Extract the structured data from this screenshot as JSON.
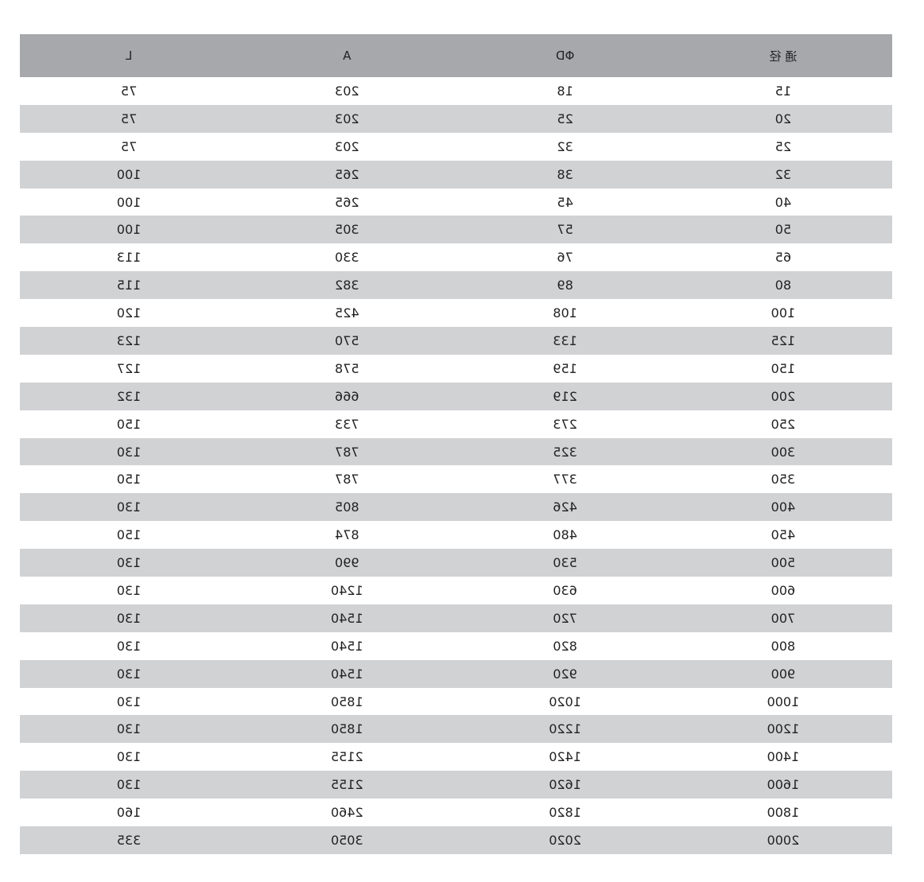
{
  "headers": [
    "通 径",
    "ΦD",
    "A",
    "L"
  ],
  "rows": [
    [
      "15",
      "18",
      "203",
      "75"
    ],
    [
      "20",
      "25",
      "203",
      "75"
    ],
    [
      "25",
      "32",
      "203",
      "75"
    ],
    [
      "32",
      "38",
      "265",
      "100"
    ],
    [
      "40",
      "45",
      "265",
      "100"
    ],
    [
      "50",
      "57",
      "305",
      "100"
    ],
    [
      "65",
      "76",
      "330",
      "113"
    ],
    [
      "80",
      "89",
      "382",
      "115"
    ],
    [
      "100",
      "108",
      "425",
      "120"
    ],
    [
      "125",
      "133",
      "570",
      "123"
    ],
    [
      "150",
      "159",
      "578",
      "127"
    ],
    [
      "200",
      "219",
      "666",
      "132"
    ],
    [
      "250",
      "273",
      "733",
      "150"
    ],
    [
      "300",
      "325",
      "787",
      "130"
    ],
    [
      "350",
      "377",
      "787",
      "150"
    ],
    [
      "400",
      "426",
      "805",
      "130"
    ],
    [
      "450",
      "480",
      "874",
      "150"
    ],
    [
      "500",
      "530",
      "990",
      "130"
    ],
    [
      "600",
      "630",
      "1240",
      "130"
    ],
    [
      "700",
      "720",
      "1540",
      "130"
    ],
    [
      "800",
      "820",
      "1540",
      "130"
    ],
    [
      "900",
      "920",
      "1540",
      "130"
    ],
    [
      "1000",
      "1020",
      "1850",
      "130"
    ],
    [
      "1200",
      "1220",
      "1850",
      "130"
    ],
    [
      "1400",
      "1420",
      "2155",
      "130"
    ],
    [
      "1600",
      "1620",
      "2155",
      "130"
    ],
    [
      "1800",
      "1820",
      "2460",
      "160"
    ],
    [
      "2000",
      "2020",
      "3050",
      "335"
    ]
  ]
}
